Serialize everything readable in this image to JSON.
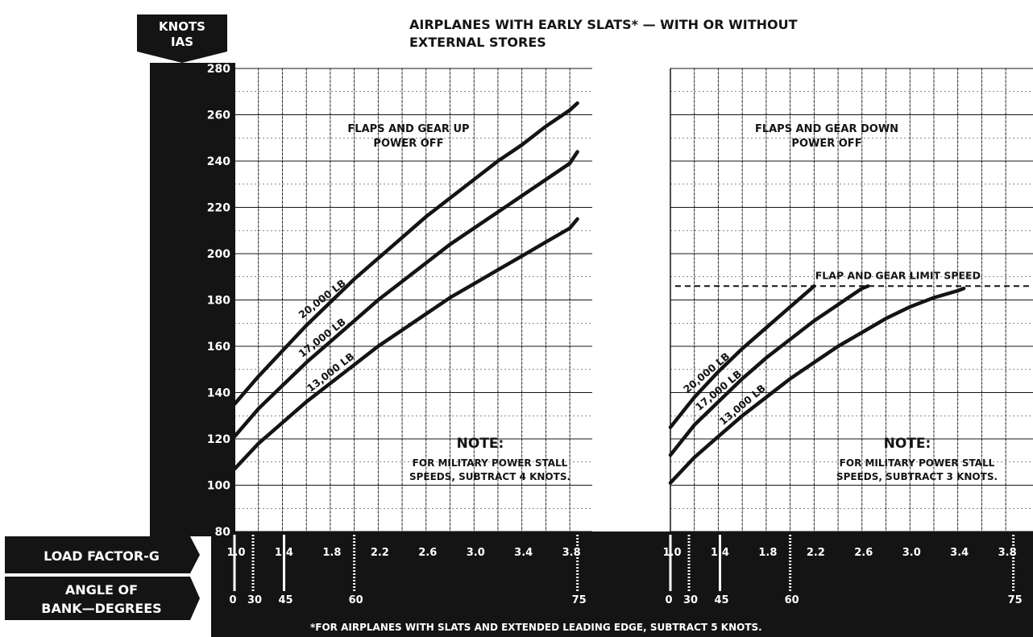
{
  "header": {
    "knots": "KNOTS",
    "ias": "IAS",
    "title_line1": "AIRPLANES WITH EARLY SLATS* — WITH OR WITHOUT",
    "title_line2": "EXTERNAL STORES"
  },
  "axis": {
    "load_factor_label": "LOAD FACTOR-G",
    "bank_label_line1": "ANGLE OF",
    "bank_label_line2": "BANK—DEGREES",
    "footnote": "*FOR AIRPLANES WITH SLATS AND EXTENDED LEADING EDGE, SUBTRACT 5 KNOTS."
  },
  "colors": {
    "ink": "#141414",
    "paper": "#ffffff"
  },
  "chart_data": [
    {
      "type": "line",
      "xlabel": "LOAD FACTOR-G",
      "ylabel": "KNOTS IAS",
      "xlim": [
        1.0,
        3.9
      ],
      "ylim": [
        80,
        280
      ],
      "x_ticks": [
        1.0,
        1.4,
        1.8,
        2.2,
        2.6,
        3.0,
        3.4,
        3.8
      ],
      "y_ticks": [
        80,
        100,
        120,
        140,
        160,
        180,
        200,
        220,
        240,
        260,
        280
      ],
      "grid": true,
      "bank_angle_ticks": [
        {
          "deg": 0,
          "g": 1.0
        },
        {
          "deg": 30,
          "g": 1.155
        },
        {
          "deg": 45,
          "g": 1.414
        },
        {
          "deg": 60,
          "g": 2.0
        },
        {
          "deg": 75,
          "g": 3.864
        }
      ],
      "condition_line1": "FLAPS AND GEAR UP",
      "condition_line2": "POWER OFF",
      "note_title": "NOTE:",
      "note_line1": "FOR MILITARY POWER STALL",
      "note_line2": "SPEEDS, SUBTRACT 4 KNOTS.",
      "series": [
        {
          "name": "20,000 LB",
          "x": [
            1.0,
            1.2,
            1.4,
            1.6,
            1.8,
            2.0,
            2.2,
            2.4,
            2.6,
            2.8,
            3.0,
            3.2,
            3.4,
            3.6,
            3.8,
            3.864
          ],
          "y": [
            135,
            147,
            158,
            169,
            179,
            189,
            198,
            207,
            216,
            224,
            232,
            240,
            247,
            255,
            262,
            265
          ]
        },
        {
          "name": "17,000 LB",
          "x": [
            1.0,
            1.2,
            1.4,
            1.6,
            1.8,
            2.0,
            2.2,
            2.4,
            2.6,
            2.8,
            3.0,
            3.2,
            3.4,
            3.6,
            3.8,
            3.864
          ],
          "y": [
            121,
            133,
            143,
            153,
            162,
            171,
            180,
            188,
            196,
            204,
            211,
            218,
            225,
            232,
            239,
            244
          ]
        },
        {
          "name": "13,000 LB",
          "x": [
            1.0,
            1.2,
            1.4,
            1.6,
            1.8,
            2.0,
            2.2,
            2.4,
            2.6,
            2.8,
            3.0,
            3.2,
            3.4,
            3.6,
            3.8,
            3.864
          ],
          "y": [
            107,
            118,
            127,
            136,
            144,
            152,
            160,
            167,
            174,
            181,
            187,
            193,
            199,
            205,
            211,
            215
          ]
        }
      ]
    },
    {
      "type": "line",
      "xlabel": "LOAD FACTOR-G",
      "ylabel": "KNOTS IAS",
      "xlim": [
        1.0,
        3.9
      ],
      "ylim": [
        80,
        280
      ],
      "x_ticks": [
        1.0,
        1.4,
        1.8,
        2.2,
        2.6,
        3.0,
        3.4,
        3.8
      ],
      "grid": true,
      "bank_angle_ticks": [
        {
          "deg": 0,
          "g": 1.0
        },
        {
          "deg": 30,
          "g": 1.155
        },
        {
          "deg": 45,
          "g": 1.414
        },
        {
          "deg": 60,
          "g": 2.0
        },
        {
          "deg": 75,
          "g": 3.864
        }
      ],
      "condition_line1": "FLAPS AND GEAR DOWN",
      "condition_line2": "POWER OFF",
      "limit_label": "FLAP AND GEAR LIMIT SPEED",
      "limit_speed": 186,
      "note_title": "NOTE:",
      "note_line1": "FOR MILITARY POWER STALL",
      "note_line2": "SPEEDS, SUBTRACT 3 KNOTS.",
      "series": [
        {
          "name": "20,000 LB",
          "x": [
            1.0,
            1.2,
            1.4,
            1.6,
            1.8,
            2.0,
            2.2
          ],
          "y": [
            125,
            138,
            149,
            159,
            168,
            177,
            186
          ]
        },
        {
          "name": "17,000 LB",
          "x": [
            1.0,
            1.2,
            1.4,
            1.6,
            1.8,
            2.0,
            2.2,
            2.4,
            2.6,
            2.65
          ],
          "y": [
            113,
            126,
            136,
            146,
            155,
            163,
            171,
            178,
            185,
            186
          ]
        },
        {
          "name": "13,000 LB",
          "x": [
            1.0,
            1.2,
            1.4,
            1.6,
            1.8,
            2.0,
            2.2,
            2.4,
            2.6,
            2.8,
            3.0,
            3.2,
            3.4,
            3.45
          ],
          "y": [
            101,
            112,
            121,
            130,
            138,
            146,
            153,
            160,
            166,
            172,
            177,
            181,
            184,
            185
          ]
        }
      ]
    }
  ]
}
